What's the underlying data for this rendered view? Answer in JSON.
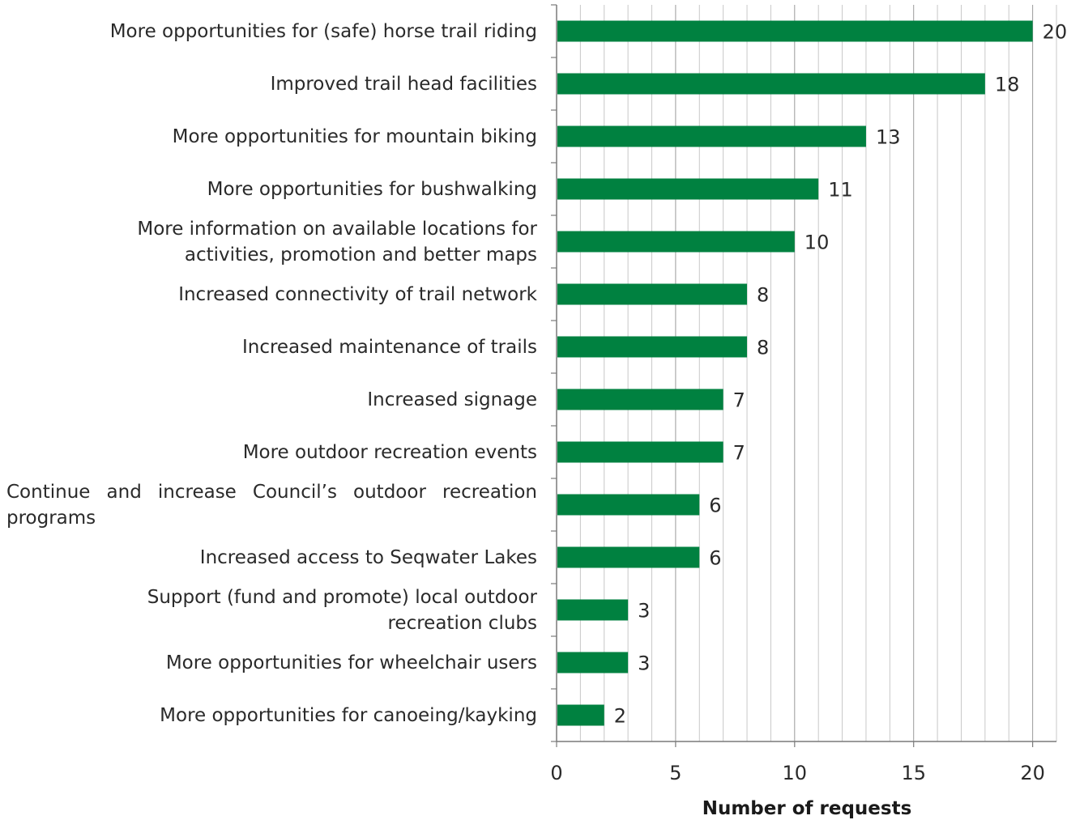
{
  "chart_data": {
    "type": "bar",
    "orientation": "horizontal",
    "categories": [
      "More opportunities for (safe) horse trail riding",
      "Improved trail head facilities",
      "More opportunities for mountain biking",
      "More opportunities for bushwalking",
      "More information on available locations for activities, promotion and better maps",
      "Increased connectivity of trail network",
      "Increased maintenance of trails",
      "Increased signage",
      "More outdoor recreation events",
      "Continue and increase Council’s outdoor recreation programs",
      "Increased access to Seqwater Lakes",
      "Support (fund and promote) local outdoor recreation clubs",
      "More opportunities for wheelchair users",
      "More opportunities for canoeing/kayking"
    ],
    "values": [
      20,
      18,
      13,
      11,
      10,
      8,
      8,
      7,
      7,
      6,
      6,
      3,
      3,
      2
    ],
    "xlabel": "Number of requests",
    "ylabel": "",
    "title": "",
    "xlim": [
      0,
      21
    ],
    "xticks": [
      0,
      5,
      10,
      15,
      20
    ],
    "grid": "vertical",
    "bar_color": "#008140",
    "legend": "none"
  }
}
